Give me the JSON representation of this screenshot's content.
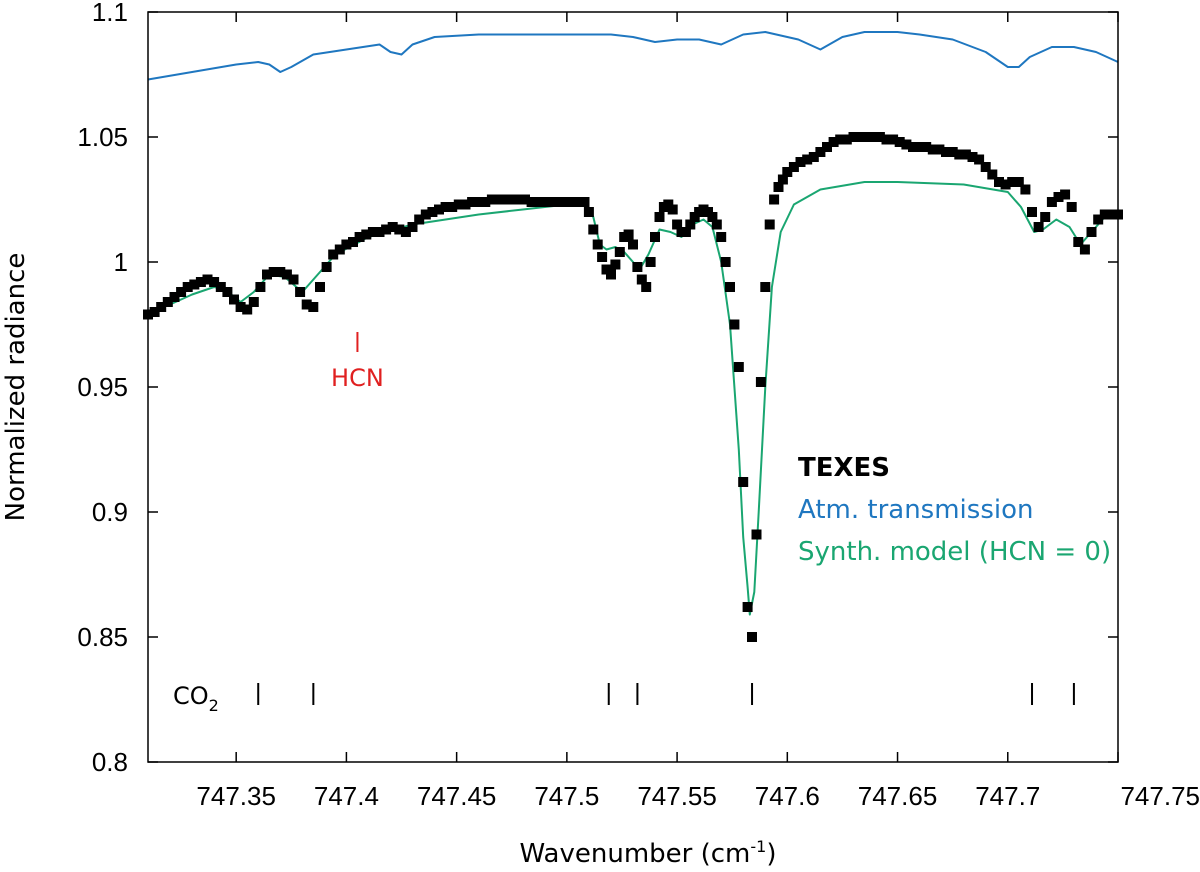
{
  "chart_data": {
    "type": "scatter",
    "xlabel": "Wavenumber (cm",
    "xlabel_sup": "-1",
    "xlabel_tail": ")",
    "ylabel": "Normalized radiance",
    "xlim": [
      747.31,
      747.75
    ],
    "ylim": [
      0.8,
      1.1
    ],
    "x_ticks": [
      747.35,
      747.4,
      747.45,
      747.5,
      747.55,
      747.6,
      747.65,
      747.7,
      747.75
    ],
    "x_tick_labels": [
      "747.35",
      "747.4",
      "747.45",
      "747.5",
      "747.55",
      "747.6",
      "747.65",
      "747.7",
      "747.75"
    ],
    "y_ticks": [
      0.8,
      0.85,
      0.9,
      0.95,
      1.0,
      1.05,
      1.1
    ],
    "y_tick_labels": [
      "0.8",
      "0.85",
      "0.9",
      "0.95",
      "1",
      "1.05",
      "1.1"
    ],
    "grid": false,
    "legend_position": "right",
    "series": [
      {
        "name": "TEXES",
        "kind": "markers",
        "color": "#000000",
        "points": [
          [
            747.31,
            0.979
          ],
          [
            747.313,
            0.98
          ],
          [
            747.316,
            0.982
          ],
          [
            747.319,
            0.984
          ],
          [
            747.322,
            0.986
          ],
          [
            747.325,
            0.988
          ],
          [
            747.328,
            0.99
          ],
          [
            747.331,
            0.991
          ],
          [
            747.334,
            0.992
          ],
          [
            747.337,
            0.993
          ],
          [
            747.34,
            0.992
          ],
          [
            747.343,
            0.99
          ],
          [
            747.346,
            0.988
          ],
          [
            747.349,
            0.985
          ],
          [
            747.352,
            0.982
          ],
          [
            747.355,
            0.981
          ],
          [
            747.358,
            0.984
          ],
          [
            747.361,
            0.99
          ],
          [
            747.364,
            0.995
          ],
          [
            747.367,
            0.996
          ],
          [
            747.37,
            0.996
          ],
          [
            747.373,
            0.995
          ],
          [
            747.376,
            0.993
          ],
          [
            747.379,
            0.988
          ],
          [
            747.382,
            0.983
          ],
          [
            747.385,
            0.982
          ],
          [
            747.388,
            0.99
          ],
          [
            747.391,
            0.998
          ],
          [
            747.394,
            1.003
          ],
          [
            747.397,
            1.005
          ],
          [
            747.4,
            1.007
          ],
          [
            747.403,
            1.008
          ],
          [
            747.406,
            1.01
          ],
          [
            747.409,
            1.011
          ],
          [
            747.412,
            1.012
          ],
          [
            747.415,
            1.012
          ],
          [
            747.418,
            1.013
          ],
          [
            747.421,
            1.014
          ],
          [
            747.424,
            1.013
          ],
          [
            747.427,
            1.012
          ],
          [
            747.43,
            1.014
          ],
          [
            747.433,
            1.017
          ],
          [
            747.436,
            1.019
          ],
          [
            747.439,
            1.02
          ],
          [
            747.442,
            1.021
          ],
          [
            747.445,
            1.022
          ],
          [
            747.448,
            1.022
          ],
          [
            747.451,
            1.023
          ],
          [
            747.454,
            1.023
          ],
          [
            747.457,
            1.024
          ],
          [
            747.46,
            1.024
          ],
          [
            747.463,
            1.024
          ],
          [
            747.466,
            1.025
          ],
          [
            747.469,
            1.025
          ],
          [
            747.472,
            1.025
          ],
          [
            747.475,
            1.025
          ],
          [
            747.478,
            1.025
          ],
          [
            747.481,
            1.025
          ],
          [
            747.484,
            1.024
          ],
          [
            747.487,
            1.024
          ],
          [
            747.49,
            1.024
          ],
          [
            747.493,
            1.024
          ],
          [
            747.496,
            1.024
          ],
          [
            747.499,
            1.024
          ],
          [
            747.502,
            1.024
          ],
          [
            747.505,
            1.024
          ],
          [
            747.508,
            1.024
          ],
          [
            747.51,
            1.02
          ],
          [
            747.512,
            1.013
          ],
          [
            747.514,
            1.007
          ],
          [
            747.516,
            1.002
          ],
          [
            747.518,
            0.997
          ],
          [
            747.52,
            0.995
          ],
          [
            747.522,
            0.999
          ],
          [
            747.524,
            1.004
          ],
          [
            747.526,
            1.01
          ],
          [
            747.528,
            1.011
          ],
          [
            747.53,
            1.007
          ],
          [
            747.532,
            0.998
          ],
          [
            747.534,
            0.993
          ],
          [
            747.536,
            0.99
          ],
          [
            747.538,
            1.0
          ],
          [
            747.54,
            1.01
          ],
          [
            747.542,
            1.018
          ],
          [
            747.544,
            1.022
          ],
          [
            747.546,
            1.023
          ],
          [
            747.548,
            1.021
          ],
          [
            747.55,
            1.015
          ],
          [
            747.552,
            1.012
          ],
          [
            747.554,
            1.012
          ],
          [
            747.556,
            1.015
          ],
          [
            747.558,
            1.018
          ],
          [
            747.56,
            1.02
          ],
          [
            747.562,
            1.021
          ],
          [
            747.564,
            1.02
          ],
          [
            747.566,
            1.018
          ],
          [
            747.568,
            1.015
          ],
          [
            747.57,
            1.01
          ],
          [
            747.572,
            1.0
          ],
          [
            747.574,
            0.99
          ],
          [
            747.576,
            0.975
          ],
          [
            747.578,
            0.958
          ],
          [
            747.58,
            0.912
          ],
          [
            747.582,
            0.862
          ],
          [
            747.584,
            0.85
          ],
          [
            747.586,
            0.891
          ],
          [
            747.588,
            0.952
          ],
          [
            747.59,
            0.99
          ],
          [
            747.592,
            1.015
          ],
          [
            747.594,
            1.025
          ],
          [
            747.596,
            1.03
          ],
          [
            747.598,
            1.033
          ],
          [
            747.6,
            1.036
          ],
          [
            747.603,
            1.038
          ],
          [
            747.606,
            1.04
          ],
          [
            747.609,
            1.041
          ],
          [
            747.612,
            1.042
          ],
          [
            747.615,
            1.044
          ],
          [
            747.618,
            1.046
          ],
          [
            747.621,
            1.048
          ],
          [
            747.624,
            1.049
          ],
          [
            747.627,
            1.049
          ],
          [
            747.63,
            1.05
          ],
          [
            747.633,
            1.05
          ],
          [
            747.636,
            1.05
          ],
          [
            747.639,
            1.05
          ],
          [
            747.642,
            1.05
          ],
          [
            747.645,
            1.049
          ],
          [
            747.648,
            1.049
          ],
          [
            747.651,
            1.048
          ],
          [
            747.654,
            1.047
          ],
          [
            747.657,
            1.046
          ],
          [
            747.66,
            1.046
          ],
          [
            747.663,
            1.046
          ],
          [
            747.666,
            1.045
          ],
          [
            747.669,
            1.045
          ],
          [
            747.672,
            1.044
          ],
          [
            747.675,
            1.044
          ],
          [
            747.678,
            1.043
          ],
          [
            747.681,
            1.043
          ],
          [
            747.684,
            1.042
          ],
          [
            747.687,
            1.041
          ],
          [
            747.69,
            1.038
          ],
          [
            747.693,
            1.035
          ],
          [
            747.696,
            1.032
          ],
          [
            747.699,
            1.031
          ],
          [
            747.702,
            1.032
          ],
          [
            747.705,
            1.032
          ],
          [
            747.708,
            1.029
          ],
          [
            747.711,
            1.02
          ],
          [
            747.714,
            1.014
          ],
          [
            747.717,
            1.018
          ],
          [
            747.72,
            1.024
          ],
          [
            747.723,
            1.026
          ],
          [
            747.726,
            1.027
          ],
          [
            747.729,
            1.022
          ],
          [
            747.732,
            1.008
          ],
          [
            747.735,
            1.005
          ],
          [
            747.738,
            1.012
          ],
          [
            747.741,
            1.017
          ],
          [
            747.744,
            1.019
          ],
          [
            747.747,
            1.019
          ],
          [
            747.75,
            1.019
          ]
        ]
      },
      {
        "name": "Atm. transmission",
        "kind": "line",
        "color": "#1f77c0",
        "points": [
          [
            747.31,
            1.073
          ],
          [
            747.33,
            1.076
          ],
          [
            747.35,
            1.079
          ],
          [
            747.36,
            1.08
          ],
          [
            747.365,
            1.079
          ],
          [
            747.37,
            1.076
          ],
          [
            747.375,
            1.078
          ],
          [
            747.385,
            1.083
          ],
          [
            747.4,
            1.085
          ],
          [
            747.415,
            1.087
          ],
          [
            747.42,
            1.084
          ],
          [
            747.425,
            1.083
          ],
          [
            747.43,
            1.087
          ],
          [
            747.44,
            1.09
          ],
          [
            747.46,
            1.091
          ],
          [
            747.5,
            1.091
          ],
          [
            747.52,
            1.091
          ],
          [
            747.53,
            1.09
          ],
          [
            747.54,
            1.088
          ],
          [
            747.55,
            1.089
          ],
          [
            747.56,
            1.089
          ],
          [
            747.57,
            1.087
          ],
          [
            747.58,
            1.091
          ],
          [
            747.59,
            1.092
          ],
          [
            747.595,
            1.091
          ],
          [
            747.605,
            1.089
          ],
          [
            747.615,
            1.085
          ],
          [
            747.625,
            1.09
          ],
          [
            747.635,
            1.092
          ],
          [
            747.65,
            1.092
          ],
          [
            747.66,
            1.091
          ],
          [
            747.675,
            1.089
          ],
          [
            747.69,
            1.084
          ],
          [
            747.7,
            1.078
          ],
          [
            747.705,
            1.078
          ],
          [
            747.71,
            1.082
          ],
          [
            747.72,
            1.086
          ],
          [
            747.73,
            1.086
          ],
          [
            747.74,
            1.084
          ],
          [
            747.75,
            1.08
          ]
        ]
      },
      {
        "name": "Synth. model (HCN = 0)",
        "kind": "line",
        "color": "#1aa671",
        "points": [
          [
            747.31,
            0.98
          ],
          [
            747.32,
            0.983
          ],
          [
            747.33,
            0.987
          ],
          [
            747.34,
            0.99
          ],
          [
            747.345,
            0.989
          ],
          [
            747.352,
            0.984
          ],
          [
            747.358,
            0.988
          ],
          [
            747.365,
            0.995
          ],
          [
            747.372,
            0.994
          ],
          [
            747.38,
            0.988
          ],
          [
            747.388,
            0.996
          ],
          [
            747.395,
            1.003
          ],
          [
            747.41,
            1.01
          ],
          [
            747.43,
            1.015
          ],
          [
            747.46,
            1.019
          ],
          [
            747.48,
            1.021
          ],
          [
            747.5,
            1.023
          ],
          [
            747.508,
            1.023
          ],
          [
            747.512,
            1.018
          ],
          [
            747.515,
            1.007
          ],
          [
            747.518,
            1.005
          ],
          [
            747.522,
            1.006
          ],
          [
            747.526,
            1.004
          ],
          [
            747.53,
            1.0
          ],
          [
            747.533,
            0.997
          ],
          [
            747.537,
            1.003
          ],
          [
            747.542,
            1.013
          ],
          [
            747.547,
            1.012
          ],
          [
            747.552,
            1.01
          ],
          [
            747.557,
            1.015
          ],
          [
            747.562,
            1.017
          ],
          [
            747.566,
            1.014
          ],
          [
            747.57,
            1.0
          ],
          [
            747.574,
            0.975
          ],
          [
            747.578,
            0.925
          ],
          [
            747.58,
            0.89
          ],
          [
            747.582,
            0.87
          ],
          [
            747.583,
            0.859
          ],
          [
            747.585,
            0.868
          ],
          [
            747.587,
            0.9
          ],
          [
            747.59,
            0.95
          ],
          [
            747.593,
            0.99
          ],
          [
            747.597,
            1.012
          ],
          [
            747.603,
            1.023
          ],
          [
            747.615,
            1.029
          ],
          [
            747.635,
            1.032
          ],
          [
            747.65,
            1.032
          ],
          [
            747.68,
            1.031
          ],
          [
            747.7,
            1.028
          ],
          [
            747.706,
            1.022
          ],
          [
            747.712,
            1.012
          ],
          [
            747.716,
            1.013
          ],
          [
            747.722,
            1.017
          ],
          [
            747.728,
            1.014
          ],
          [
            747.733,
            1.007
          ],
          [
            747.738,
            1.012
          ],
          [
            747.744,
            1.018
          ],
          [
            747.75,
            1.02
          ]
        ]
      }
    ],
    "annotations": {
      "hcn": {
        "label": "HCN",
        "x": 747.405,
        "color": "#e02020"
      },
      "co2": {
        "label": "CO",
        "subscript": "2",
        "line_x": [
          747.36,
          747.385,
          747.519,
          747.532,
          747.584,
          747.711,
          747.73
        ]
      }
    }
  }
}
